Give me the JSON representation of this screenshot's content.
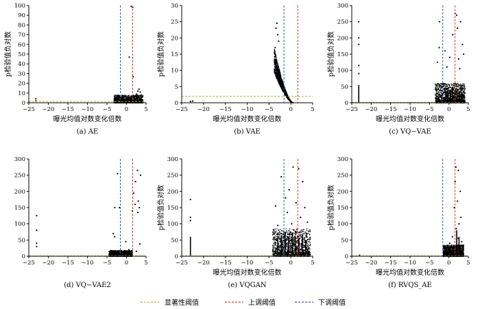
{
  "chart_data": [
    {
      "type": "scatter",
      "caption": "(a) AE",
      "xlabel": "曝光均值对数变化倍数",
      "ylabel": "p检验值负对数",
      "xlim": [
        -25,
        5
      ],
      "ylim": [
        0,
        100
      ],
      "xticks": [
        -25,
        -20,
        -15,
        -10,
        -5,
        0,
        5
      ],
      "yticks": [
        0,
        10,
        20,
        30,
        40,
        50,
        60,
        70,
        80,
        90,
        100
      ],
      "points": [
        [
          -23.2,
          2
        ],
        [
          -23.2,
          4
        ],
        [
          1.2,
          99
        ],
        [
          1.6,
          98
        ],
        [
          0.7,
          47
        ],
        [
          1.7,
          27
        ],
        [
          -3.0,
          6
        ],
        [
          -2.8,
          5
        ],
        [
          3.2,
          14
        ],
        [
          3.5,
          11
        ],
        [
          2.6,
          9
        ],
        [
          -1.4,
          4
        ],
        [
          -0.8,
          7
        ],
        [
          0.2,
          3
        ],
        [
          2.9,
          12
        ],
        [
          3.8,
          8
        ]
      ],
      "dense_clusters": [
        {
          "x": [
            -3.2,
            4.2
          ],
          "y": [
            0,
            8
          ]
        }
      ],
      "columns": [],
      "thresholds": {
        "significance": 1.3,
        "up": 1.58,
        "down": -1.58
      }
    },
    {
      "type": "scatter",
      "caption": "(b) VAE",
      "xlabel": "曝光均值对数变化倍数",
      "ylabel": "p检验值负对数",
      "xlim": [
        -25,
        5
      ],
      "ylim": [
        0,
        30
      ],
      "xticks": [
        -25,
        -20,
        -15,
        -10,
        -5,
        0,
        5
      ],
      "yticks": [
        0,
        5,
        10,
        15,
        20,
        25,
        30
      ],
      "points": [
        [
          -3.2,
          24.5
        ],
        [
          -3.4,
          23
        ],
        [
          -3.0,
          21
        ],
        [
          -2.8,
          19
        ],
        [
          -3.6,
          17
        ],
        [
          -22.5,
          0.5
        ],
        [
          -23.0,
          0.4
        ]
      ],
      "dense_clusters": [
        {
          "shape": "wedge",
          "x": [
            -3.8,
            0.5
          ],
          "y": [
            0,
            17
          ]
        }
      ],
      "columns": [],
      "thresholds": {
        "significance": 2.0,
        "up": 1.58,
        "down": -1.58
      }
    },
    {
      "type": "scatter",
      "caption": "(c) VQ−VAE",
      "xlabel": "曝光均值对数变化倍数",
      "ylabel": "p检验值负对数",
      "xlim": [
        -25,
        5
      ],
      "ylim": [
        0,
        300
      ],
      "xticks": [
        -25,
        -20,
        -15,
        -10,
        -5,
        0,
        5
      ],
      "yticks": [
        0,
        50,
        100,
        150,
        200,
        250,
        300
      ],
      "points": [
        [
          -23.2,
          250
        ],
        [
          -23.2,
          200
        ],
        [
          -23.2,
          180
        ],
        [
          -23.2,
          115
        ],
        [
          -23.2,
          90
        ],
        [
          -2.4,
          250
        ],
        [
          1.6,
          275
        ],
        [
          2.0,
          270
        ],
        [
          3.0,
          250
        ],
        [
          2.2,
          230
        ],
        [
          1.0,
          210
        ],
        [
          3.5,
          180
        ],
        [
          -2.5,
          170
        ],
        [
          -1.0,
          160
        ],
        [
          0.2,
          140
        ],
        [
          2.5,
          135
        ],
        [
          3.8,
          150
        ],
        [
          -3.0,
          125
        ],
        [
          -0.5,
          110
        ],
        [
          2.8,
          105
        ]
      ],
      "dense_clusters": [
        {
          "x": [
            -3.5,
            4.2
          ],
          "y": [
            0,
            60
          ]
        }
      ],
      "columns": [
        {
          "x": -23.2,
          "top": 55
        },
        {
          "x": -0.8,
          "top": 35
        },
        {
          "x": -0.2,
          "top": 45
        },
        {
          "x": 0.4,
          "top": 40
        },
        {
          "x": 0.9,
          "top": 50
        },
        {
          "x": 1.5,
          "top": 38
        },
        {
          "x": 2.1,
          "top": 42
        },
        {
          "x": 2.7,
          "top": 35
        },
        {
          "x": 3.3,
          "top": 30
        }
      ],
      "thresholds": {
        "significance": 1.3,
        "up": 1.58,
        "down": -1.58
      }
    },
    {
      "type": "scatter",
      "caption": "(d) VQ−VAE2",
      "xlabel": "",
      "ylabel": "",
      "xlim": [
        -25,
        5
      ],
      "ylim": [
        0,
        300
      ],
      "xticks": [
        -25,
        -20,
        -15,
        -10,
        -5,
        0,
        5
      ],
      "yticks": [
        0,
        50,
        100,
        150,
        200,
        250,
        300
      ],
      "points": [
        [
          -23.0,
          125
        ],
        [
          -23.0,
          80
        ],
        [
          -23.0,
          40
        ],
        [
          -23.0,
          30
        ],
        [
          -3.0,
          150
        ],
        [
          -2.3,
          255
        ],
        [
          -1.8,
          150
        ],
        [
          -3.4,
          70
        ],
        [
          -3.0,
          60
        ],
        [
          2.8,
          265
        ],
        [
          3.6,
          250
        ],
        [
          2.3,
          230
        ],
        [
          1.8,
          195
        ],
        [
          3.0,
          170
        ],
        [
          2.2,
          160
        ],
        [
          1.5,
          140
        ],
        [
          3.3,
          150
        ],
        [
          2.9,
          135
        ],
        [
          -0.2,
          45
        ],
        [
          0.6,
          20
        ],
        [
          2.5,
          15
        ],
        [
          3.4,
          38
        ]
      ],
      "dense_clusters": [
        {
          "x": [
            -4.5,
            1.5
          ],
          "y": [
            0,
            18
          ]
        }
      ],
      "columns": [],
      "thresholds": {
        "significance": 1.3,
        "up": 1.58,
        "down": -1.58
      }
    },
    {
      "type": "scatter",
      "caption": "(e) VQGAN",
      "xlabel": "曝光均值对数变化倍数",
      "ylabel": "p检验值负对数",
      "xlim": [
        -25,
        5
      ],
      "ylim": [
        0,
        300
      ],
      "xticks": [
        -25,
        -20,
        -15,
        -10,
        -5,
        0,
        5
      ],
      "yticks": [
        0,
        50,
        100,
        150,
        200,
        250,
        300
      ],
      "points": [
        [
          -23.0,
          175
        ],
        [
          -23.0,
          120
        ],
        [
          -23.0,
          110
        ],
        [
          -2.2,
          245
        ],
        [
          0.5,
          275
        ],
        [
          1.8,
          270
        ],
        [
          -0.4,
          205
        ],
        [
          2.7,
          230
        ],
        [
          -1.2,
          180
        ],
        [
          1.2,
          165
        ],
        [
          3.2,
          150
        ],
        [
          -3.5,
          155
        ],
        [
          -0.8,
          135
        ],
        [
          2.2,
          120
        ],
        [
          3.8,
          105
        ],
        [
          -3.0,
          95
        ],
        [
          0.2,
          100
        ]
      ],
      "dense_clusters": [
        {
          "x": [
            -4.2,
            4.5
          ],
          "y": [
            0,
            85
          ]
        }
      ],
      "columns": [
        {
          "x": -23.0,
          "top": 60
        },
        {
          "x": -3.0,
          "top": 58
        },
        {
          "x": -2.2,
          "top": 65
        },
        {
          "x": -1.3,
          "top": 75
        },
        {
          "x": -0.5,
          "top": 60
        },
        {
          "x": 0.3,
          "top": 70
        },
        {
          "x": 1.0,
          "top": 62
        },
        {
          "x": 1.8,
          "top": 55
        },
        {
          "x": 2.6,
          "top": 68
        },
        {
          "x": 3.4,
          "top": 50
        }
      ],
      "thresholds": {
        "significance": 1.3,
        "up": 1.58,
        "down": -1.58
      }
    },
    {
      "type": "scatter",
      "caption": "(f) RVQS_AE",
      "xlabel": "曝光均值对数变化倍数",
      "ylabel": "p检验值负对数",
      "xlim": [
        -25,
        5
      ],
      "ylim": [
        0,
        300
      ],
      "xticks": [
        -25,
        -20,
        -15,
        -10,
        -5,
        0,
        5
      ],
      "yticks": [
        0,
        50,
        100,
        150,
        200,
        250,
        300
      ],
      "points": [
        [
          -23.0,
          3
        ],
        [
          1.8,
          275
        ],
        [
          2.4,
          265
        ],
        [
          1.6,
          230
        ],
        [
          2.9,
          200
        ],
        [
          2.2,
          170
        ],
        [
          1.4,
          150
        ],
        [
          3.1,
          120
        ],
        [
          2.6,
          100
        ],
        [
          1.9,
          85
        ],
        [
          0.9,
          60
        ],
        [
          2.4,
          55
        ],
        [
          3.3,
          45
        ],
        [
          0.2,
          40
        ],
        [
          -0.6,
          25
        ],
        [
          1.1,
          30
        ],
        [
          2.8,
          28
        ]
      ],
      "dense_clusters": [
        {
          "x": [
            -1.5,
            3.8
          ],
          "y": [
            0,
            35
          ]
        }
      ],
      "columns": [
        {
          "x": 2.0,
          "top": 80
        },
        {
          "x": 2.6,
          "top": 60
        }
      ],
      "thresholds": {
        "significance": 1.3,
        "up": 1.58,
        "down": -1.58
      }
    }
  ],
  "legend": [
    {
      "label": "显著性阈值",
      "color": "#b5b93a"
    },
    {
      "label": "上调阈值",
      "color": "#e03030"
    },
    {
      "label": "下调阈值",
      "color": "#3050b0"
    }
  ]
}
